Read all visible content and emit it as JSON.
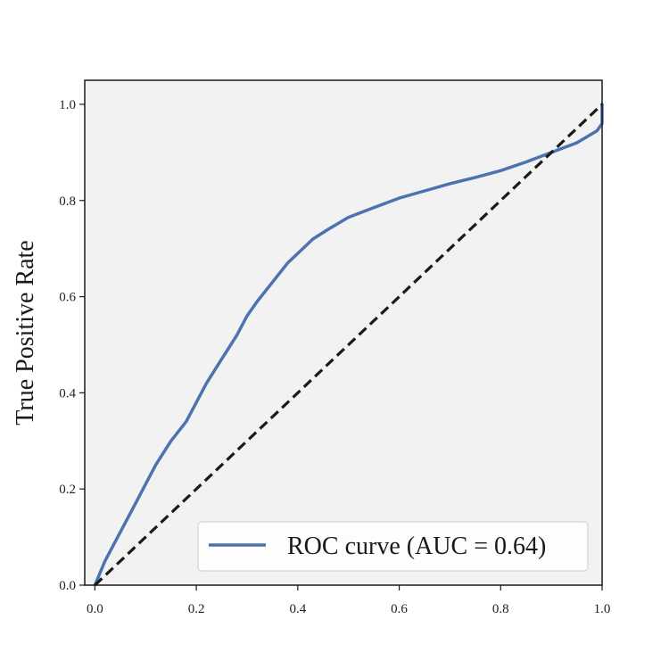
{
  "chart_data": {
    "type": "line",
    "title": "",
    "xlabel": "",
    "ylabel": "True Positive Rate",
    "xlim": [
      -0.02,
      1.0
    ],
    "ylim": [
      0.0,
      1.05
    ],
    "x_ticks": [
      0.0,
      0.2,
      0.4,
      0.6,
      0.8,
      1.0
    ],
    "x_tick_labels": [
      "0.0",
      "0.2",
      "0.4",
      "0.6",
      "0.8",
      "1.0"
    ],
    "y_ticks": [
      0.0,
      0.2,
      0.4,
      0.6,
      0.8,
      1.0
    ],
    "y_tick_labels": [
      "0.0",
      "0.2",
      "0.4",
      "0.6",
      "0.8",
      "1.0"
    ],
    "grid": false,
    "legend_position": "lower-right",
    "colors": {
      "plot_background": "#f2f2f2",
      "roc_curve": "#4c72b0",
      "diagonal": "#1a1a1a",
      "frame": "#1a1a1a"
    },
    "series": [
      {
        "name": "ROC curve (AUC = 0.64)",
        "style": "solid",
        "x": [
          0.0,
          0.02,
          0.05,
          0.08,
          0.1,
          0.12,
          0.15,
          0.18,
          0.2,
          0.22,
          0.25,
          0.28,
          0.3,
          0.32,
          0.35,
          0.38,
          0.4,
          0.43,
          0.46,
          0.5,
          0.55,
          0.6,
          0.65,
          0.7,
          0.75,
          0.8,
          0.85,
          0.9,
          0.95,
          0.99,
          1.0,
          1.0
        ],
        "y": [
          0.0,
          0.05,
          0.11,
          0.17,
          0.21,
          0.25,
          0.3,
          0.34,
          0.38,
          0.42,
          0.47,
          0.52,
          0.56,
          0.59,
          0.63,
          0.67,
          0.69,
          0.72,
          0.74,
          0.765,
          0.785,
          0.805,
          0.82,
          0.835,
          0.848,
          0.862,
          0.88,
          0.9,
          0.92,
          0.945,
          0.96,
          1.0
        ]
      },
      {
        "name": "",
        "style": "dashed",
        "x": [
          0.0,
          1.0
        ],
        "y": [
          0.0,
          1.0
        ]
      }
    ]
  }
}
